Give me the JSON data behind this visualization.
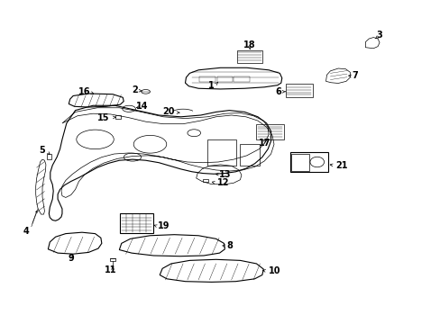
{
  "background_color": "#ffffff",
  "figure_width": 4.89,
  "figure_height": 3.6,
  "dpi": 100,
  "line_color": "#000000",
  "label_fontsize": 7,
  "label_fontweight": "bold"
}
